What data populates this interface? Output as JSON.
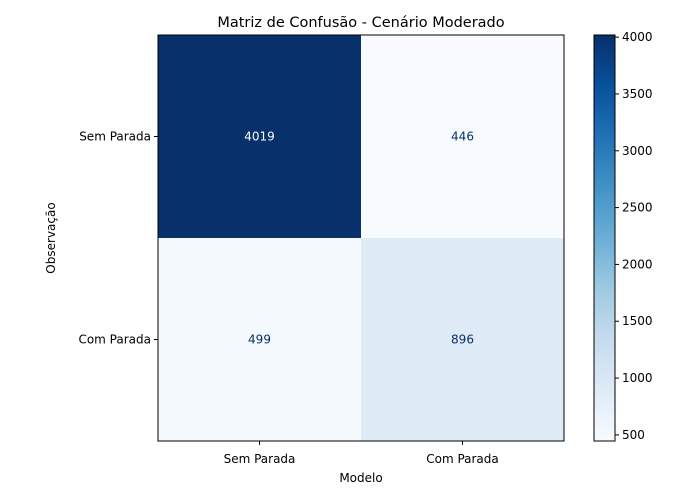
{
  "chart_data": {
    "type": "heatmap",
    "title": "Matriz de Confusão - Cenário Moderado",
    "xlabel": "Modelo",
    "ylabel": "Observação",
    "x_categories": [
      "Sem Parada",
      "Com Parada"
    ],
    "y_categories": [
      "Sem Parada",
      "Com Parada"
    ],
    "matrix": [
      [
        4019,
        446
      ],
      [
        499,
        896
      ]
    ],
    "colormap": "Blues",
    "color_range": [
      446,
      4019
    ],
    "colorbar_ticks": [
      500,
      1000,
      1500,
      2000,
      2500,
      3000,
      3500,
      4000
    ],
    "colors": {
      "high": "#08306b",
      "low": "#f7fbff",
      "text_on_dark": "#f7fbff",
      "text_on_light": "#08306b"
    }
  }
}
